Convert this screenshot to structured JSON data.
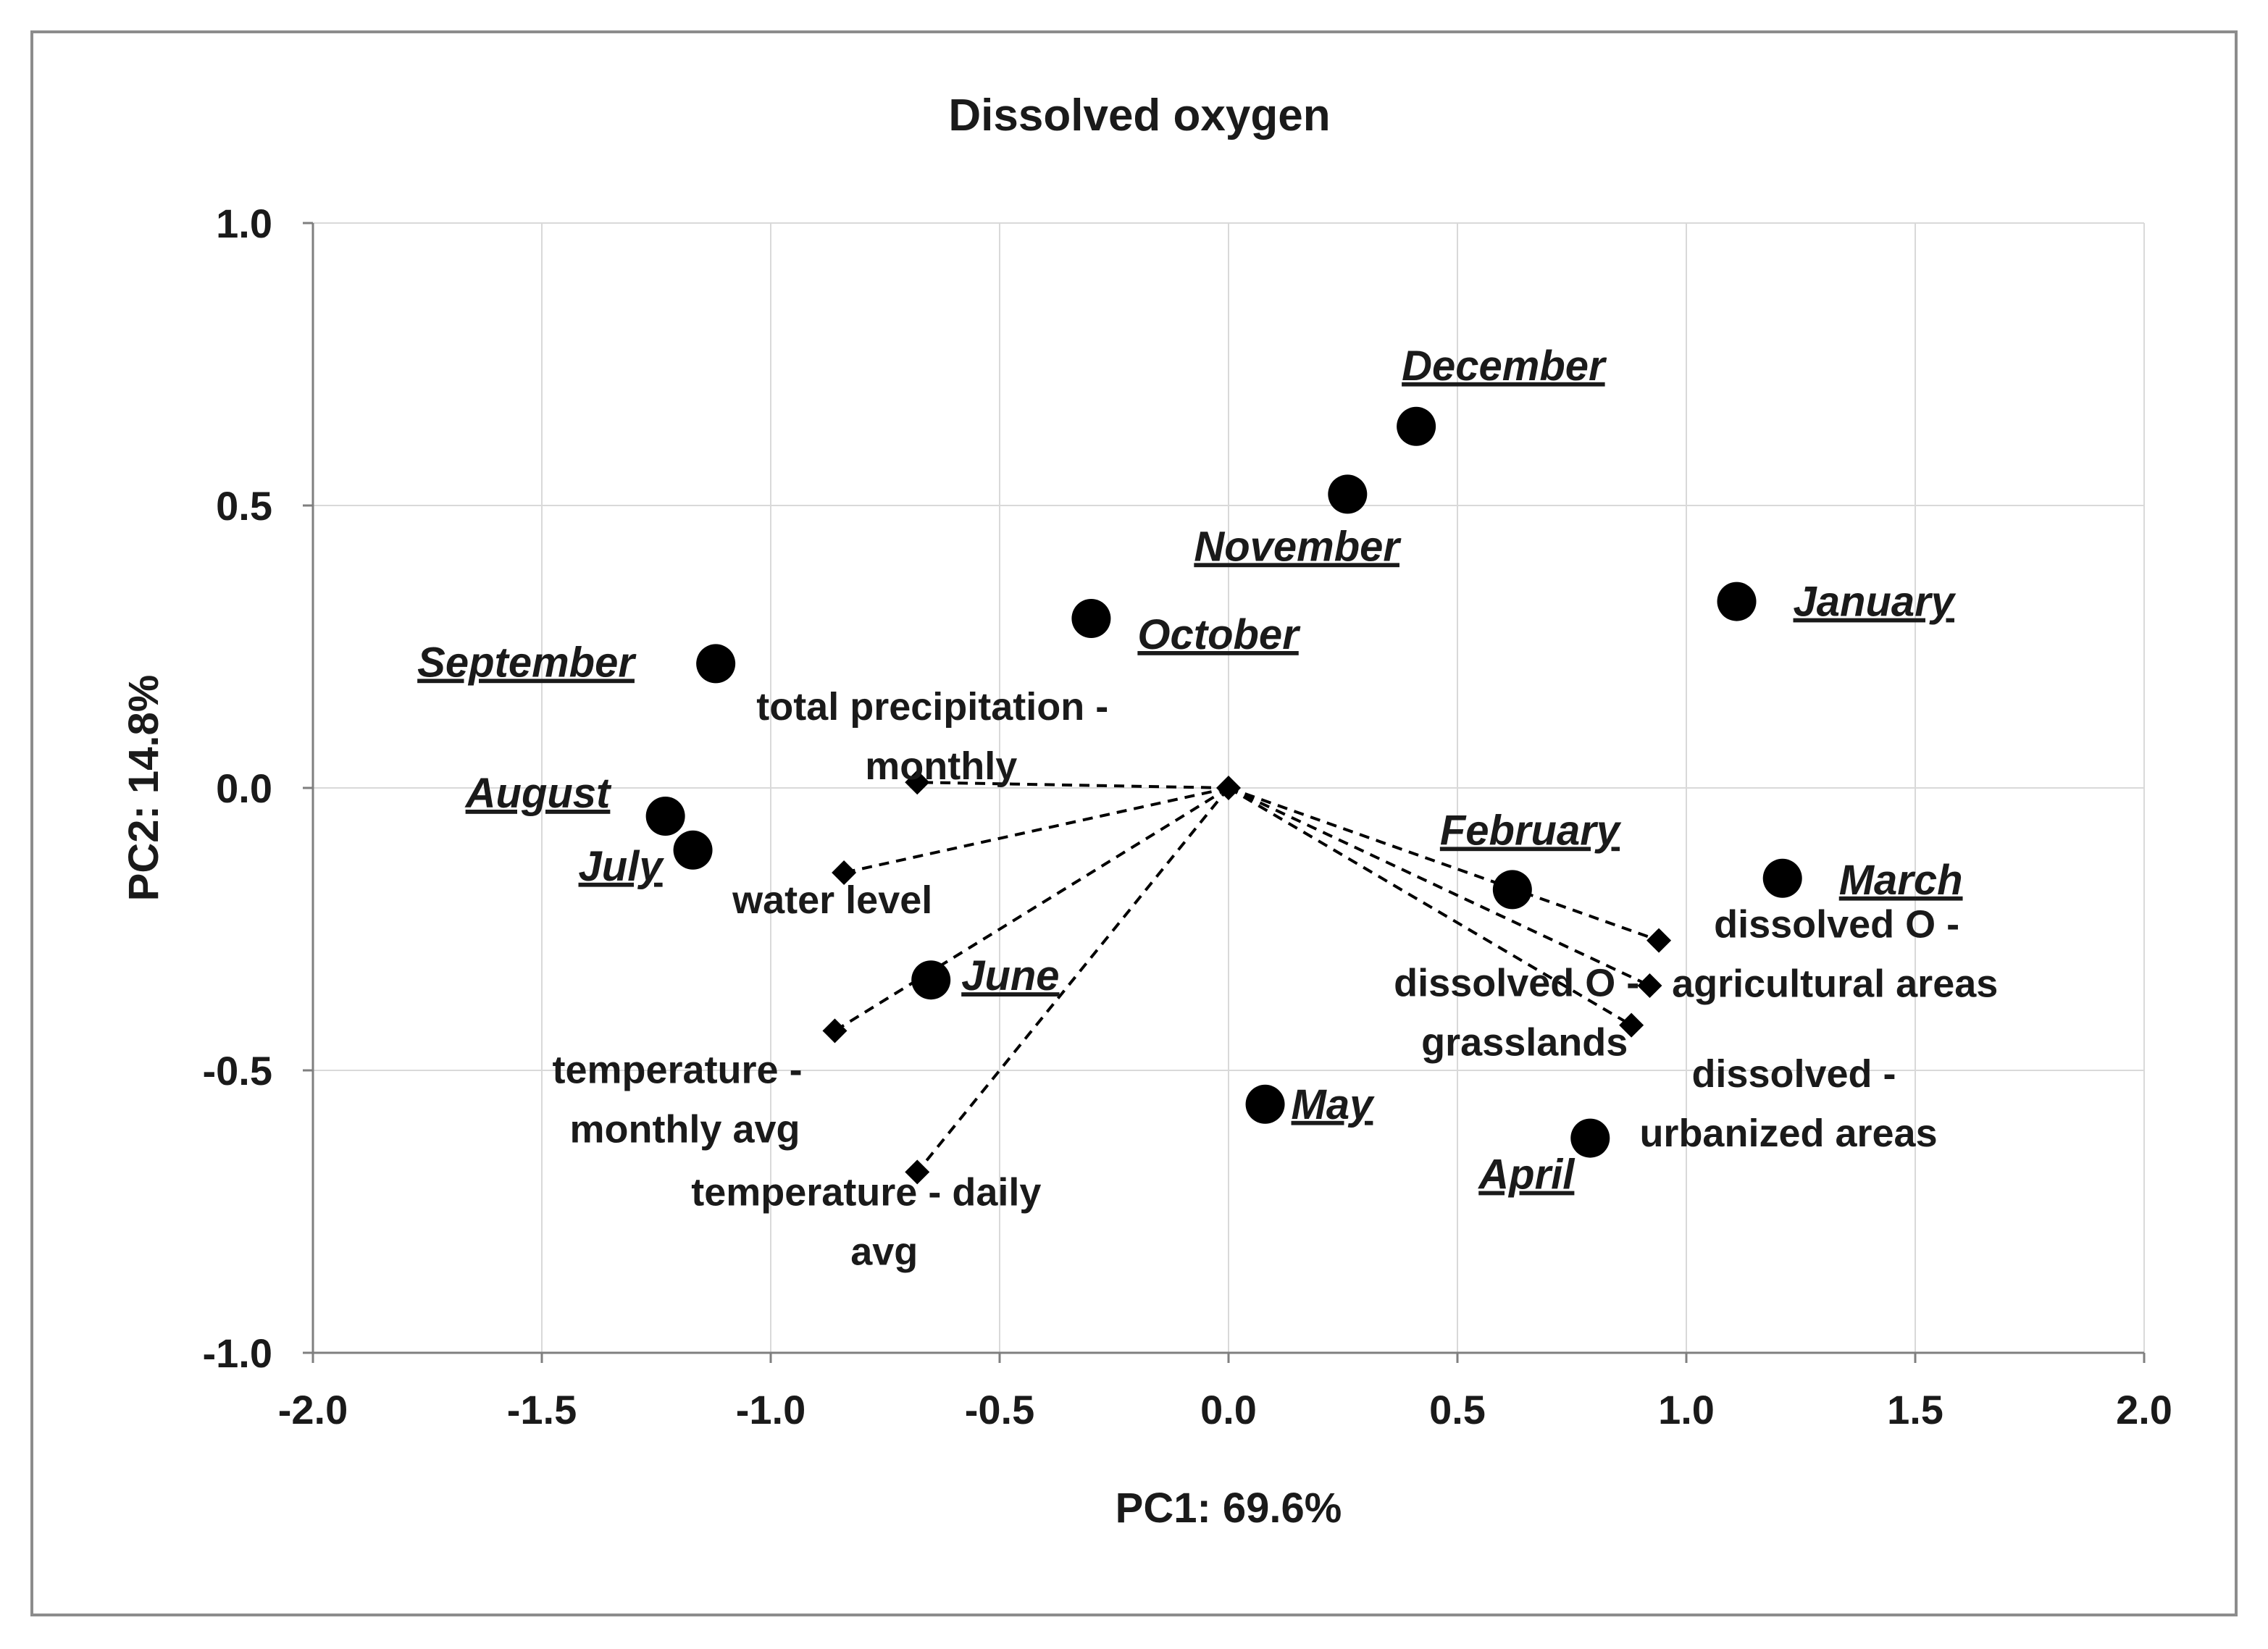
{
  "chart_data": {
    "type": "scatter",
    "title": "Dissolved oxygen",
    "xlabel": "PC1: 69.6%",
    "ylabel": "PC2: 14.8%",
    "xlim": [
      -2.0,
      2.0
    ],
    "ylim": [
      -1.0,
      1.0
    ],
    "x_ticks": [
      "-2.0",
      "-1.5",
      "-1.0",
      "-0.5",
      "0.0",
      "0.5",
      "1.0",
      "1.5",
      "2.0"
    ],
    "y_ticks": [
      "1.0",
      "0.5",
      "0.0",
      "-0.5",
      "-1.0"
    ],
    "grid": true,
    "series": [
      {
        "name": "months",
        "marker": "circle",
        "points": [
          {
            "label": "January",
            "x": 1.11,
            "y": 0.33
          },
          {
            "label": "February",
            "x": 0.62,
            "y": -0.18
          },
          {
            "label": "March",
            "x": 1.21,
            "y": -0.16
          },
          {
            "label": "April",
            "x": 0.79,
            "y": -0.62
          },
          {
            "label": "May",
            "x": 0.08,
            "y": -0.56
          },
          {
            "label": "June",
            "x": -0.65,
            "y": -0.34
          },
          {
            "label": "July",
            "x": -1.17,
            "y": -0.11
          },
          {
            "label": "August",
            "x": -1.23,
            "y": -0.05
          },
          {
            "label": "September",
            "x": -1.12,
            "y": 0.22
          },
          {
            "label": "October",
            "x": -0.3,
            "y": 0.3
          },
          {
            "label": "November",
            "x": 0.26,
            "y": 0.52
          },
          {
            "label": "December",
            "x": 0.41,
            "y": 0.64
          }
        ]
      },
      {
        "name": "variables",
        "marker": "diamond",
        "origin": {
          "x": 0.0,
          "y": 0.0
        },
        "points": [
          {
            "label": "total precipitation - monthly",
            "lines": [
              "total precipitation -",
              "monthly"
            ],
            "x": -0.68,
            "y": 0.01
          },
          {
            "label": "water level",
            "lines": [
              "water level"
            ],
            "x": -0.84,
            "y": -0.15
          },
          {
            "label": "temperature - monthly avg",
            "lines": [
              "temperature -",
              "monthly avg"
            ],
            "x": -0.86,
            "y": -0.43
          },
          {
            "label": "temperature - daily avg",
            "lines": [
              "temperature - daily",
              "avg"
            ],
            "x": -0.68,
            "y": -0.68
          },
          {
            "label": "dissolved O - agricultural areas",
            "lines": [
              "dissolved O -",
              "agricultural areas"
            ],
            "x": 0.94,
            "y": -0.27
          },
          {
            "label": "dissolved - urbanized areas",
            "lines": [
              "dissolved -",
              "urbanized areas"
            ],
            "x": 0.92,
            "y": -0.35
          },
          {
            "label": "dissolved O - grasslands",
            "lines": [
              "dissolved O -",
              "grasslands"
            ],
            "x": 0.88,
            "y": -0.42
          }
        ]
      }
    ]
  }
}
